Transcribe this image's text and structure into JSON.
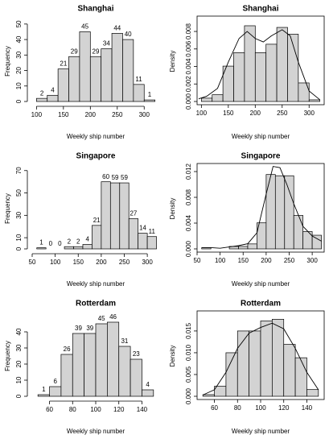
{
  "chart_data": [
    {
      "type": "histogram",
      "title": "Shanghai",
      "xlabel": "Weekly ship number",
      "ylabel": "Frequency",
      "bins": [
        100,
        120,
        140,
        160,
        180,
        200,
        220,
        240,
        260,
        280,
        300,
        320
      ],
      "values": [
        2,
        4,
        21,
        29,
        45,
        29,
        34,
        44,
        40,
        11,
        1
      ],
      "xlim": [
        92,
        328
      ],
      "ylim": [
        0,
        52
      ],
      "xticks": [
        100,
        150,
        200,
        250,
        300
      ],
      "yticks": [
        0,
        10,
        20,
        30,
        40,
        50
      ],
      "color": "#d3d3d3",
      "data_labels": true,
      "frame": false
    },
    {
      "type": "histogram",
      "title": "Shanghai",
      "xlabel": "Weekly ship number",
      "ylabel": "Density",
      "bins": [
        100,
        120,
        140,
        160,
        180,
        200,
        220,
        240,
        260,
        280,
        300,
        320
      ],
      "values": [
        0.00038,
        0.00077,
        0.00404,
        0.00558,
        0.00865,
        0.00558,
        0.00654,
        0.00846,
        0.00769,
        0.00212,
        0.00019
      ],
      "xlim": [
        92,
        328
      ],
      "ylim": [
        0,
        0.0092
      ],
      "xticks": [
        100,
        150,
        200,
        250,
        300
      ],
      "yticks": [
        {
          "value": 0,
          "label": "0.000"
        },
        {
          "value": 0.002,
          "label": "0.002"
        },
        {
          "value": 0.004,
          "label": "0.004"
        },
        {
          "value": 0.006,
          "label": "0.006"
        },
        {
          "value": 0.008,
          "label": "0.008"
        }
      ],
      "color": "#d3d3d3",
      "data_labels": false,
      "frame": true,
      "density_curve": {
        "x": [
          95,
          110,
          130,
          150,
          170,
          185,
          200,
          215,
          230,
          250,
          265,
          280,
          300,
          320
        ],
        "y": [
          0.0003,
          0.0006,
          0.0015,
          0.0045,
          0.0072,
          0.008,
          0.0072,
          0.0068,
          0.0075,
          0.0082,
          0.0075,
          0.0045,
          0.0012,
          0.0002
        ]
      }
    },
    {
      "type": "histogram",
      "title": "Singapore",
      "xlabel": "Weekly ship number",
      "ylabel": "Frequency",
      "bins": [
        60,
        80,
        100,
        120,
        140,
        160,
        180,
        200,
        220,
        240,
        260,
        280,
        300,
        320
      ],
      "values": [
        1,
        0,
        0,
        2,
        2,
        4,
        21,
        60,
        59,
        59,
        27,
        14,
        11
      ],
      "xlim": [
        50,
        326
      ],
      "ylim": [
        0,
        72
      ],
      "xticks": [
        50,
        100,
        150,
        200,
        250,
        300
      ],
      "yticks": [
        0,
        10,
        30,
        50,
        70
      ],
      "color": "#d3d3d3",
      "data_labels": true,
      "frame": false
    },
    {
      "type": "histogram",
      "title": "Singapore",
      "xlabel": "Weekly ship number",
      "ylabel": "Density",
      "bins": [
        60,
        80,
        100,
        120,
        140,
        160,
        180,
        200,
        220,
        240,
        260,
        280,
        300,
        320
      ],
      "values": [
        0.00019,
        0,
        0,
        0.00038,
        0.00038,
        0.00077,
        0.00404,
        0.01154,
        0.01135,
        0.01135,
        0.00519,
        0.00269,
        0.00212
      ],
      "xlim": [
        50,
        326
      ],
      "ylim": [
        0,
        0.0125
      ],
      "xticks": [
        50,
        100,
        150,
        200,
        250,
        300
      ],
      "yticks": [
        {
          "value": 0,
          "label": "0.000"
        },
        {
          "value": 0.004,
          "label": "0.004"
        },
        {
          "value": 0.008,
          "label": "0.008"
        },
        {
          "value": 0.012,
          "label": "0.012"
        }
      ],
      "color": "#d3d3d3",
      "data_labels": false,
      "frame": true,
      "density_curve": {
        "x": [
          60,
          80,
          100,
          120,
          140,
          160,
          180,
          200,
          215,
          230,
          245,
          260,
          280,
          300,
          320
        ],
        "y": [
          0.0002,
          0.0002,
          0.0001,
          0.0003,
          0.0005,
          0.0008,
          0.0025,
          0.0085,
          0.0128,
          0.0126,
          0.01,
          0.007,
          0.0035,
          0.002,
          0.0012
        ]
      }
    },
    {
      "type": "histogram",
      "title": "Rotterdam",
      "xlabel": "Weekly ship number",
      "ylabel": "Frequency",
      "bins": [
        50,
        60,
        70,
        80,
        90,
        100,
        110,
        120,
        130,
        140,
        150
      ],
      "values": [
        1,
        6,
        26,
        39,
        39,
        45,
        46,
        31,
        23,
        4
      ],
      "xlim": [
        45,
        155
      ],
      "ylim": [
        0,
        50
      ],
      "xticks": [
        60,
        80,
        100,
        120,
        140
      ],
      "yticks": [
        0,
        10,
        20,
        30,
        40
      ],
      "color": "#d3d3d3",
      "data_labels": true,
      "frame": false
    },
    {
      "type": "histogram",
      "title": "Rotterdam",
      "xlabel": "Weekly ship number",
      "ylabel": "Density",
      "bins": [
        50,
        60,
        70,
        80,
        90,
        100,
        110,
        120,
        130,
        140,
        150
      ],
      "values": [
        0.00038,
        0.00231,
        0.01,
        0.015,
        0.015,
        0.01731,
        0.01769,
        0.01192,
        0.00885,
        0.00154
      ],
      "xlim": [
        45,
        155
      ],
      "ylim": [
        0,
        0.0185
      ],
      "xticks": [
        60,
        80,
        100,
        120,
        140
      ],
      "yticks": [
        {
          "value": 0,
          "label": "0.000"
        },
        {
          "value": 0.005,
          "label": "0.005"
        },
        {
          "value": 0.01,
          "label": "0.010"
        },
        {
          "value": 0.015,
          "label": "0.015"
        }
      ],
      "color": "#d3d3d3",
      "data_labels": false,
      "frame": true,
      "density_curve": {
        "x": [
          50,
          60,
          70,
          80,
          90,
          100,
          110,
          120,
          130,
          140,
          150
        ],
        "y": [
          0.0003,
          0.0015,
          0.0055,
          0.011,
          0.0145,
          0.0158,
          0.0168,
          0.0155,
          0.011,
          0.0055,
          0.0015
        ]
      }
    }
  ]
}
